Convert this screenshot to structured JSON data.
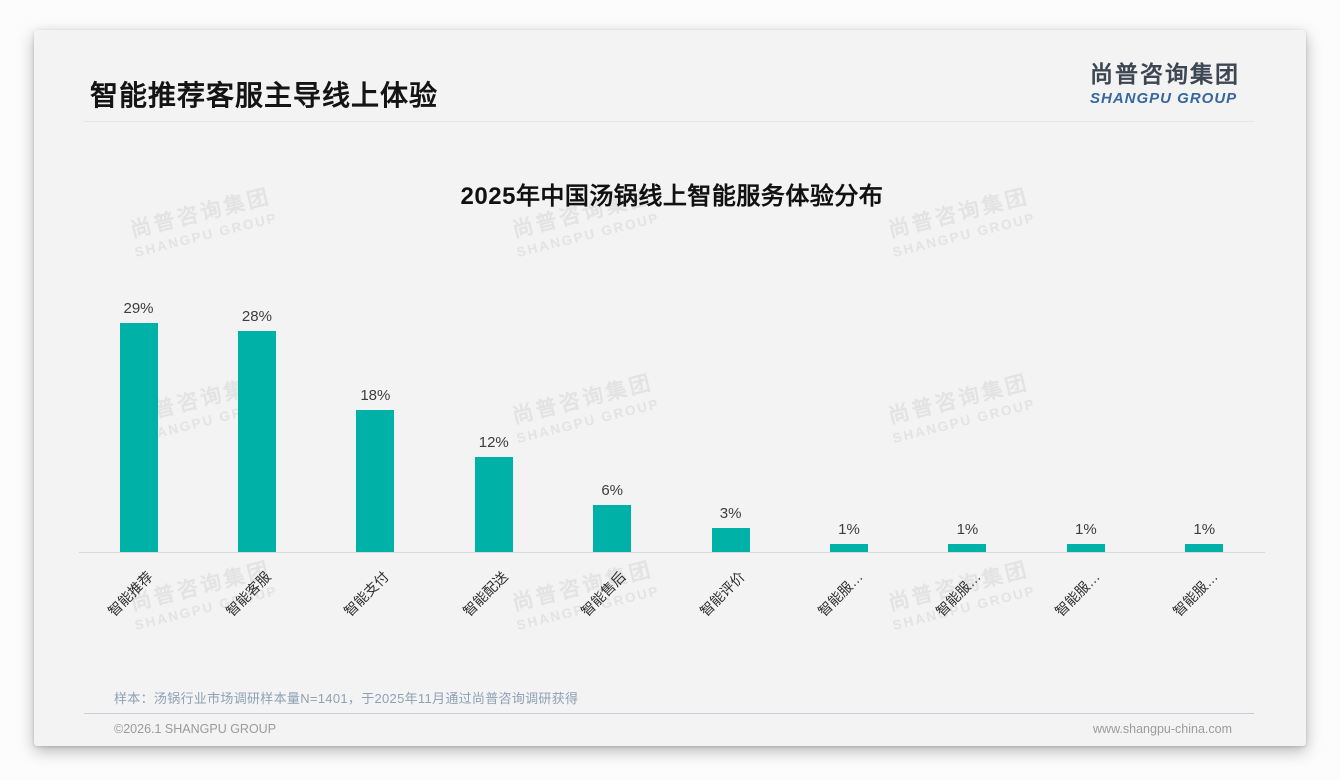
{
  "header": {
    "title": "智能推荐客服主导线上体验",
    "logo_cn": "尚普咨询集团",
    "logo_en": "SHANGPU GROUP"
  },
  "chart_data": {
    "type": "bar",
    "title": "2025年中国汤锅线上智能服务体验分布",
    "categories": [
      "智能推荐",
      "智能客服",
      "智能支付",
      "智能配送",
      "智能售后",
      "智能评价",
      "智能服…",
      "智能服…",
      "智能服…",
      "智能服…"
    ],
    "values": [
      29,
      28,
      18,
      12,
      6,
      3,
      1,
      1,
      1,
      1
    ],
    "value_labels": [
      "29%",
      "28%",
      "18%",
      "12%",
      "6%",
      "3%",
      "1%",
      "1%",
      "1%",
      "1%"
    ],
    "unit": "%",
    "bar_color": "#00b1a8",
    "ylim": [
      0,
      30
    ],
    "grid": false,
    "legend": null,
    "xlabel": "",
    "ylabel": "",
    "data_labels_position": "above"
  },
  "watermark": {
    "line1": "尚普咨询集团",
    "line2": "SHANGPU GROUP"
  },
  "footer": {
    "note": "样本：汤锅行业市场调研样本量N=1401，于2025年11月通过尚普咨询调研获得",
    "copyright": "©2026.1 SHANGPU GROUP",
    "website": "www.shangpu-china.com"
  }
}
